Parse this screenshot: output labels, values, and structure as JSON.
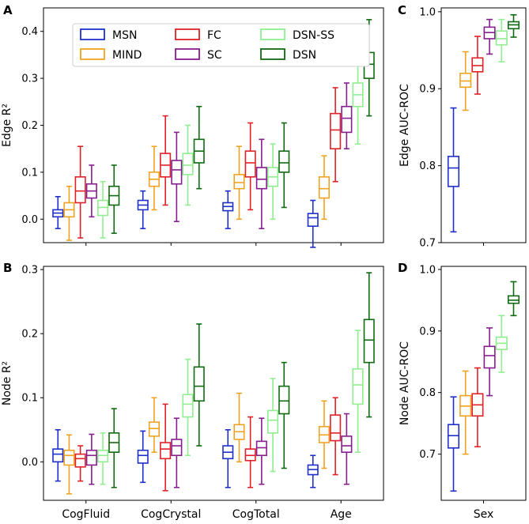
{
  "figure": {
    "series_colors": {
      "MSN": "#1f2fcc",
      "MIND": "#f0a321",
      "FC": "#e02128",
      "SC": "#861e8e",
      "DSN-SS": "#90ee90",
      "DSN": "#116911"
    }
  },
  "chart_data": [
    {
      "panel": "A",
      "type": "box",
      "ylabel": "Edge R²",
      "ylim": [
        -0.05,
        0.45
      ],
      "yticks": [
        "0.0",
        "0.1",
        "0.2",
        "0.3",
        "0.4"
      ],
      "ytick_values": [
        0.0,
        0.1,
        0.2,
        0.3,
        0.4
      ],
      "categories": [
        "CogFluid",
        "CogCrystal",
        "CogTotal",
        "Age"
      ],
      "show_xticklabels": false,
      "legend": [
        "MSN",
        "MIND",
        "FC",
        "SC",
        "DSN-SS",
        "DSN"
      ],
      "series": [
        {
          "name": "MSN",
          "boxes": [
            [
              -0.02,
              0.005,
              0.013,
              0.02,
              0.048
            ],
            [
              -0.02,
              0.02,
              0.03,
              0.04,
              0.06
            ],
            [
              -0.02,
              0.018,
              0.027,
              0.035,
              0.06
            ],
            [
              -0.06,
              -0.015,
              0.003,
              0.012,
              0.04
            ]
          ]
        },
        {
          "name": "MIND",
          "boxes": [
            [
              -0.045,
              0.005,
              0.02,
              0.035,
              0.07
            ],
            [
              0.02,
              0.07,
              0.085,
              0.1,
              0.155
            ],
            [
              0.0,
              0.065,
              0.078,
              0.095,
              0.155
            ],
            [
              0.0,
              0.045,
              0.065,
              0.09,
              0.135
            ]
          ]
        },
        {
          "name": "FC",
          "boxes": [
            [
              -0.04,
              0.035,
              0.06,
              0.09,
              0.155
            ],
            [
              0.03,
              0.09,
              0.115,
              0.14,
              0.22
            ],
            [
              0.02,
              0.09,
              0.12,
              0.145,
              0.205
            ],
            [
              0.08,
              0.15,
              0.19,
              0.225,
              0.28
            ]
          ]
        },
        {
          "name": "SC",
          "boxes": [
            [
              0.005,
              0.045,
              0.06,
              0.075,
              0.115
            ],
            [
              -0.005,
              0.075,
              0.105,
              0.125,
              0.185
            ],
            [
              -0.02,
              0.065,
              0.085,
              0.11,
              0.17
            ],
            [
              0.15,
              0.185,
              0.215,
              0.24,
              0.29
            ]
          ]
        },
        {
          "name": "DSN-SS",
          "boxes": [
            [
              -0.04,
              0.008,
              0.025,
              0.04,
              0.08
            ],
            [
              0.03,
              0.095,
              0.115,
              0.14,
              0.2
            ],
            [
              0.0,
              0.07,
              0.09,
              0.11,
              0.16
            ],
            [
              0.16,
              0.24,
              0.265,
              0.29,
              0.37
            ]
          ]
        },
        {
          "name": "DSN",
          "boxes": [
            [
              -0.03,
              0.03,
              0.05,
              0.07,
              0.115
            ],
            [
              0.065,
              0.12,
              0.145,
              0.17,
              0.24
            ],
            [
              0.025,
              0.1,
              0.12,
              0.145,
              0.205
            ],
            [
              0.22,
              0.3,
              0.33,
              0.355,
              0.425
            ]
          ]
        }
      ]
    },
    {
      "panel": "B",
      "type": "box",
      "ylabel": "Node R²",
      "ylim": [
        -0.06,
        0.305
      ],
      "yticks": [
        "0.0",
        "0.1",
        "0.2",
        "0.3"
      ],
      "ytick_values": [
        0.0,
        0.1,
        0.2,
        0.3
      ],
      "categories": [
        "CogFluid",
        "CogCrystal",
        "CogTotal",
        "Age"
      ],
      "show_xticklabels": true,
      "series": [
        {
          "name": "MSN",
          "boxes": [
            [
              -0.03,
              0.0,
              0.012,
              0.02,
              0.05
            ],
            [
              -0.032,
              -0.002,
              0.01,
              0.018,
              0.048
            ],
            [
              -0.04,
              0.005,
              0.015,
              0.025,
              0.05
            ],
            [
              -0.04,
              -0.02,
              -0.012,
              -0.005,
              0.01
            ]
          ]
        },
        {
          "name": "MIND",
          "boxes": [
            [
              -0.05,
              -0.005,
              0.01,
              0.018,
              0.042
            ],
            [
              0.015,
              0.04,
              0.052,
              0.062,
              0.1
            ],
            [
              0.0,
              0.035,
              0.047,
              0.058,
              0.107
            ],
            [
              -0.01,
              0.03,
              0.042,
              0.055,
              0.095
            ]
          ]
        },
        {
          "name": "FC",
          "boxes": [
            [
              -0.03,
              -0.008,
              0.005,
              0.012,
              0.025
            ],
            [
              -0.045,
              0.005,
              0.02,
              0.03,
              0.09
            ],
            [
              -0.04,
              0.002,
              0.01,
              0.02,
              0.07
            ],
            [
              -0.02,
              0.033,
              0.045,
              0.073,
              0.1
            ]
          ]
        },
        {
          "name": "SC",
          "boxes": [
            [
              -0.035,
              -0.005,
              0.01,
              0.018,
              0.043
            ],
            [
              -0.04,
              0.01,
              0.025,
              0.035,
              0.068
            ],
            [
              -0.035,
              0.01,
              0.022,
              0.032,
              0.068
            ],
            [
              -0.035,
              0.015,
              0.025,
              0.04,
              0.075
            ]
          ]
        },
        {
          "name": "DSN-SS",
          "boxes": [
            [
              -0.035,
              0.0,
              0.01,
              0.018,
              0.045
            ],
            [
              0.01,
              0.07,
              0.09,
              0.105,
              0.16
            ],
            [
              -0.015,
              0.045,
              0.065,
              0.08,
              0.13
            ],
            [
              0.015,
              0.09,
              0.12,
              0.145,
              0.205
            ]
          ]
        },
        {
          "name": "DSN",
          "boxes": [
            [
              -0.04,
              0.015,
              0.03,
              0.045,
              0.083
            ],
            [
              0.025,
              0.095,
              0.118,
              0.148,
              0.215
            ],
            [
              -0.01,
              0.075,
              0.095,
              0.118,
              0.155
            ],
            [
              0.07,
              0.155,
              0.19,
              0.222,
              0.295
            ]
          ]
        }
      ]
    },
    {
      "panel": "C",
      "type": "box",
      "ylabel": "Edge AUC-ROC",
      "ylim": [
        0.7,
        1.005
      ],
      "yticks": [
        "0.7",
        "0.8",
        "0.9",
        "1.0"
      ],
      "ytick_values": [
        0.7,
        0.8,
        0.9,
        1.0
      ],
      "categories": [
        "Sex"
      ],
      "show_xticklabels": false,
      "series": [
        {
          "name": "MSN",
          "boxes": [
            [
              0.714,
              0.773,
              0.797,
              0.812,
              0.875
            ]
          ]
        },
        {
          "name": "MIND",
          "boxes": [
            [
              0.872,
              0.902,
              0.91,
              0.92,
              0.948
            ]
          ]
        },
        {
          "name": "FC",
          "boxes": [
            [
              0.893,
              0.922,
              0.93,
              0.94,
              0.968
            ]
          ]
        },
        {
          "name": "SC",
          "boxes": [
            [
              0.945,
              0.965,
              0.973,
              0.98,
              0.99
            ]
          ]
        },
        {
          "name": "DSN-SS",
          "boxes": [
            [
              0.935,
              0.957,
              0.965,
              0.975,
              0.99
            ]
          ]
        },
        {
          "name": "DSN",
          "boxes": [
            [
              0.967,
              0.978,
              0.983,
              0.987,
              0.996
            ]
          ]
        }
      ]
    },
    {
      "panel": "D",
      "type": "box",
      "ylabel": "Node AUC-ROC",
      "ylim": [
        0.625,
        1.005
      ],
      "yticks": [
        "0.7",
        "0.8",
        "0.9",
        "1.0"
      ],
      "ytick_values": [
        0.7,
        0.8,
        0.9,
        1.0
      ],
      "categories": [
        "Sex"
      ],
      "show_xticklabels": true,
      "series": [
        {
          "name": "MSN",
          "boxes": [
            [
              0.64,
              0.71,
              0.73,
              0.748,
              0.793
            ]
          ]
        },
        {
          "name": "MIND",
          "boxes": [
            [
              0.7,
              0.762,
              0.778,
              0.795,
              0.835
            ]
          ]
        },
        {
          "name": "FC",
          "boxes": [
            [
              0.712,
              0.762,
              0.78,
              0.798,
              0.84
            ]
          ]
        },
        {
          "name": "SC",
          "boxes": [
            [
              0.795,
              0.84,
              0.86,
              0.875,
              0.905
            ]
          ]
        },
        {
          "name": "DSN-SS",
          "boxes": [
            [
              0.833,
              0.87,
              0.88,
              0.89,
              0.925
            ]
          ]
        },
        {
          "name": "DSN",
          "boxes": [
            [
              0.925,
              0.945,
              0.95,
              0.957,
              0.98
            ]
          ]
        }
      ]
    }
  ]
}
